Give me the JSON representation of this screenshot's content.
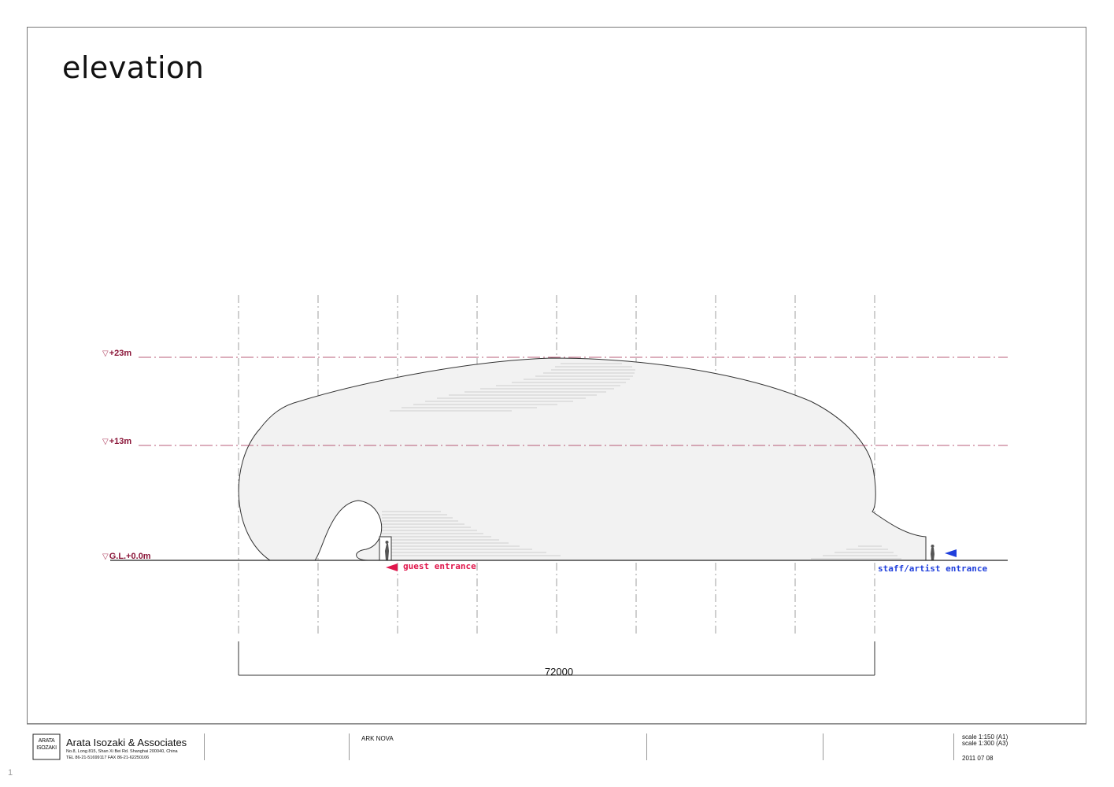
{
  "sheet": {
    "title": "elevation",
    "levels": [
      {
        "label": "+23m"
      },
      {
        "label": "+13m"
      },
      {
        "label": "G.L.+0.0m"
      }
    ],
    "guest_entrance": "guest entrance",
    "staff_entrance": "staff/artist entrance",
    "dimension": "72000",
    "colors": {
      "level_line": "#a3294f",
      "guest": "#e0174c",
      "staff": "#1f3fdc",
      "hull_fill": "#f2f2f2"
    }
  },
  "titleblock": {
    "logo_text": "ARATA ISOZAKI",
    "firm": "Arata Isozaki & Associates",
    "address": "No.8, Long 815, Shan Xi Bei Rd. Shanghai 200040, China",
    "contact": "TEL 86-21-51699117  FAX 86-21-62250106",
    "project": "ARK NOVA",
    "scale_a1": "scale 1:150 (A1)",
    "scale_a3": "scale 1:300 (A3)",
    "date": "2011 07 08"
  },
  "page_marker": "1"
}
